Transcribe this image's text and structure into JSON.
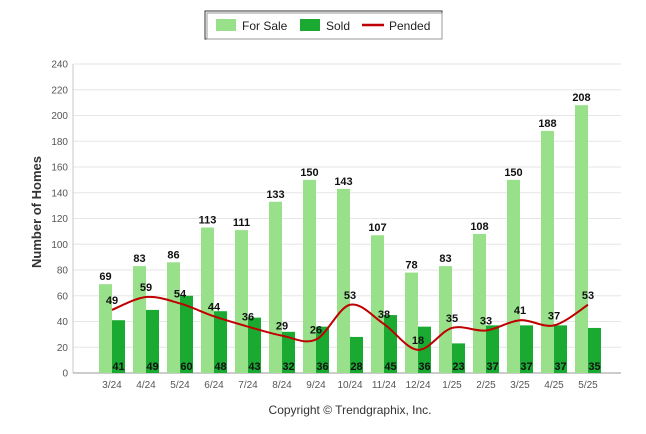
{
  "chart_data": {
    "type": "bar",
    "categories": [
      "3/24",
      "4/24",
      "5/24",
      "6/24",
      "7/24",
      "8/24",
      "9/24",
      "10/24",
      "11/24",
      "12/24",
      "1/25",
      "2/25",
      "3/25",
      "4/25",
      "5/25"
    ],
    "series": [
      {
        "name": "For Sale",
        "type": "bar",
        "color": "#99e08a",
        "values": [
          69,
          83,
          86,
          113,
          111,
          133,
          150,
          143,
          107,
          78,
          83,
          108,
          150,
          188,
          208
        ]
      },
      {
        "name": "Sold",
        "type": "bar",
        "color": "#1aaa32",
        "values": [
          41,
          49,
          60,
          48,
          43,
          32,
          36,
          28,
          45,
          36,
          23,
          37,
          37,
          37,
          35
        ]
      },
      {
        "name": "Pended",
        "type": "line",
        "color": "#c00000",
        "values": [
          49,
          59,
          54,
          44,
          36,
          29,
          26,
          53,
          38,
          18,
          35,
          33,
          41,
          37,
          53
        ]
      }
    ],
    "title": "",
    "xlabel": "",
    "ylabel": "Number of Homes",
    "ylim": [
      0,
      240
    ],
    "yticks": [
      0,
      20,
      40,
      60,
      80,
      100,
      120,
      140,
      160,
      180,
      200,
      220,
      240
    ],
    "grid": true,
    "legend_position": "top-center"
  },
  "legend": {
    "for_sale": "For Sale",
    "sold": "Sold",
    "pended": "Pended"
  },
  "credit": "Copyright © Trendgraphix, Inc."
}
